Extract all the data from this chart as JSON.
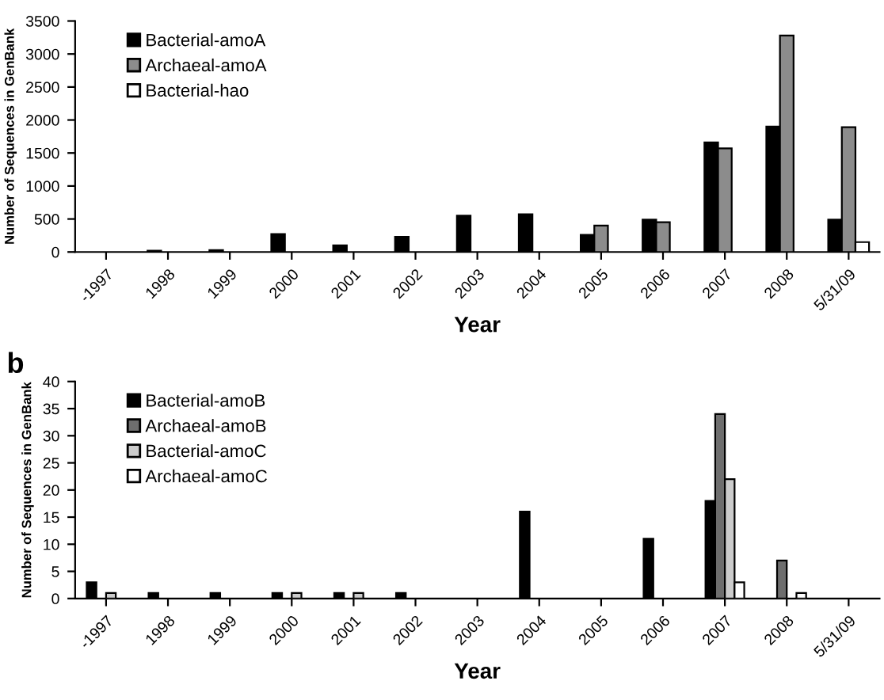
{
  "chart_data": [
    {
      "type": "bar",
      "xlabel": "Year",
      "ylabel": "Number of Sequences in GenBank",
      "categories": [
        "-1997",
        "1998",
        "1999",
        "2000",
        "2001",
        "2002",
        "2003",
        "2004",
        "2005",
        "2006",
        "2007",
        "2008",
        "5/31/09"
      ],
      "series": [
        {
          "name": "Bacterial-amoA",
          "color": "#000000",
          "values": [
            null,
            20,
            30,
            270,
            100,
            230,
            550,
            570,
            260,
            490,
            1660,
            1900,
            490
          ]
        },
        {
          "name": "Archaeal-amoA",
          "color": "#8c8c8c",
          "values": [
            null,
            null,
            null,
            null,
            null,
            null,
            null,
            null,
            400,
            450,
            1570,
            3280,
            1890
          ]
        },
        {
          "name": "Bacterial-hao",
          "color": "#ffffff",
          "values": [
            null,
            null,
            null,
            null,
            null,
            null,
            null,
            null,
            null,
            null,
            null,
            null,
            150
          ]
        }
      ],
      "ylim": [
        0,
        3500
      ],
      "yticks": [
        0,
        500,
        1000,
        1500,
        2000,
        2500,
        3000,
        3500
      ],
      "grid": false,
      "legend": "top left"
    },
    {
      "type": "bar",
      "title": "b",
      "xlabel": "Year",
      "ylabel": "Number of Sequences in GenBank",
      "categories": [
        "-1997",
        "1998",
        "1999",
        "2000",
        "2001",
        "2002",
        "2003",
        "2004",
        "2005",
        "2006",
        "2007",
        "2008",
        "5/31/09"
      ],
      "series": [
        {
          "name": "Bacterial-amoB",
          "color": "#000000",
          "values": [
            3,
            1,
            1,
            1,
            1,
            1,
            null,
            16,
            null,
            11,
            18,
            null,
            null
          ]
        },
        {
          "name": "Archaeal-amoB",
          "color": "#6e6e6e",
          "values": [
            null,
            null,
            null,
            null,
            null,
            null,
            null,
            null,
            null,
            null,
            34,
            7,
            null
          ]
        },
        {
          "name": "Bacterial-amoC",
          "color": "#cccccc",
          "values": [
            1,
            null,
            null,
            1,
            1,
            null,
            null,
            null,
            null,
            null,
            22,
            null,
            null
          ]
        },
        {
          "name": "Archaeal-amoC",
          "color": "#ffffff",
          "values": [
            null,
            null,
            null,
            null,
            null,
            null,
            null,
            null,
            null,
            null,
            3,
            1,
            null
          ]
        }
      ],
      "ylim": [
        0,
        40
      ],
      "yticks": [
        0,
        5,
        10,
        15,
        20,
        25,
        30,
        35,
        40
      ],
      "grid": false,
      "legend": "top left"
    }
  ]
}
